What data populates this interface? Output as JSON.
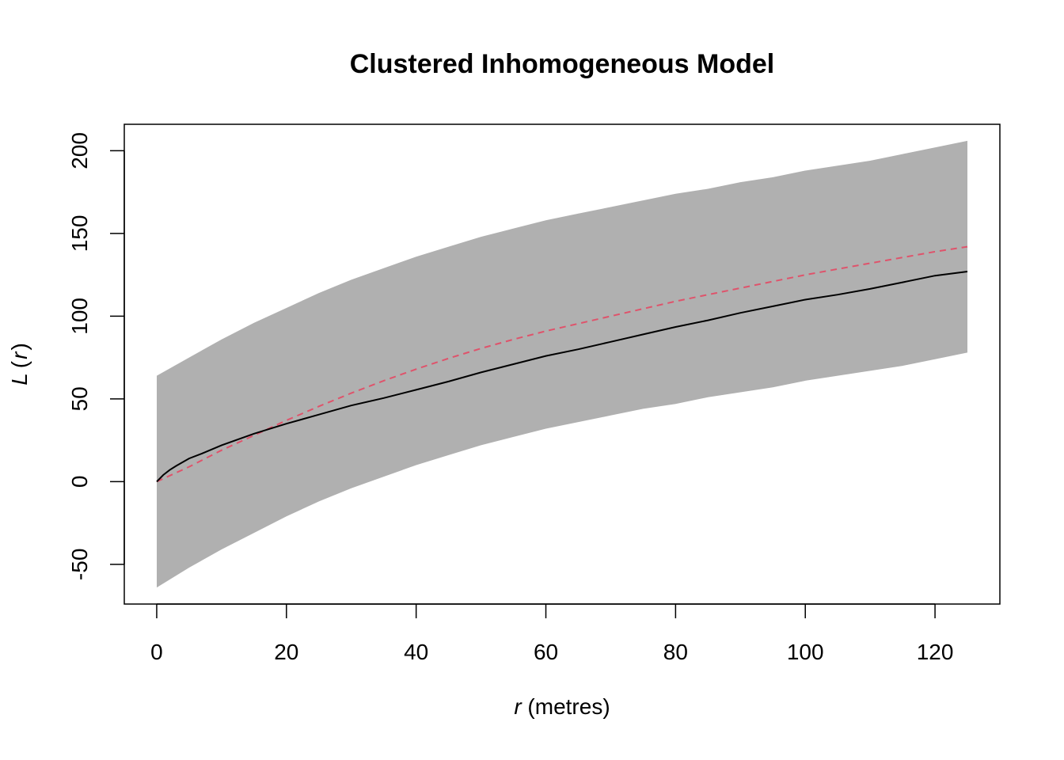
{
  "chart_data": {
    "type": "line",
    "title": "Clustered Inhomogeneous Model",
    "xlabel": {
      "var": "r",
      "rest": " (metres)"
    },
    "ylabel": {
      "fn": "L",
      "open": "(",
      "var": "r",
      "close": ")"
    },
    "xlim": [
      -5,
      130
    ],
    "ylim": [
      -74,
      216
    ],
    "xticks": [
      0,
      20,
      40,
      60,
      80,
      100,
      120
    ],
    "yticks": [
      -50,
      0,
      50,
      100,
      150,
      200
    ],
    "colors": {
      "envelope": "#b0b0b0",
      "observed": "#000000",
      "theoretical": "#df536b"
    },
    "grid": false,
    "legend": "none",
    "series": [
      {
        "role": "envelope-upper",
        "style": "filled band",
        "x": [
          0,
          5,
          10,
          15,
          20,
          25,
          30,
          35,
          40,
          45,
          50,
          55,
          60,
          65,
          70,
          75,
          80,
          85,
          90,
          95,
          100,
          105,
          110,
          115,
          120,
          125
        ],
        "values": [
          64,
          75,
          86,
          96,
          105,
          114,
          122,
          129,
          136,
          142,
          148,
          153,
          158,
          162,
          166,
          170,
          174,
          177,
          181,
          184,
          188,
          191,
          194,
          198,
          202,
          206
        ]
      },
      {
        "role": "envelope-lower",
        "style": "filled band",
        "x": [
          0,
          5,
          10,
          15,
          20,
          25,
          30,
          35,
          40,
          45,
          50,
          55,
          60,
          65,
          70,
          75,
          80,
          85,
          90,
          95,
          100,
          105,
          110,
          115,
          120,
          125
        ],
        "values": [
          -64,
          -52,
          -41,
          -31,
          -21,
          -12,
          -4,
          3,
          10,
          16,
          22,
          27,
          32,
          36,
          40,
          44,
          47,
          51,
          54,
          57,
          61,
          64,
          67,
          70,
          74,
          78
        ]
      },
      {
        "role": "observed",
        "style": "solid",
        "x": [
          0,
          1,
          2,
          3,
          5,
          7,
          10,
          15,
          20,
          25,
          30,
          35,
          40,
          45,
          50,
          55,
          60,
          65,
          70,
          75,
          80,
          85,
          90,
          95,
          100,
          105,
          110,
          115,
          120,
          125
        ],
        "values": [
          0,
          4,
          7,
          9.5,
          14,
          17,
          22,
          29,
          35,
          40.5,
          46,
          50.5,
          55.5,
          60.5,
          66,
          71,
          76,
          80,
          84.5,
          89,
          93.5,
          97.5,
          102,
          106,
          110,
          113,
          116.5,
          120.5,
          124.5,
          127
        ]
      },
      {
        "role": "theoretical",
        "style": "dashed",
        "x": [
          0,
          5,
          10,
          15,
          20,
          25,
          30,
          35,
          40,
          45,
          50,
          55,
          60,
          65,
          70,
          75,
          80,
          85,
          90,
          95,
          100,
          105,
          110,
          115,
          120,
          125
        ],
        "values": [
          0,
          9,
          19,
          28,
          37,
          45.5,
          53.5,
          61,
          68,
          74.5,
          80.5,
          86,
          91,
          95.5,
          100,
          104.5,
          109,
          113,
          117,
          121,
          125,
          128.5,
          132,
          135.5,
          139,
          142
        ]
      }
    ]
  }
}
